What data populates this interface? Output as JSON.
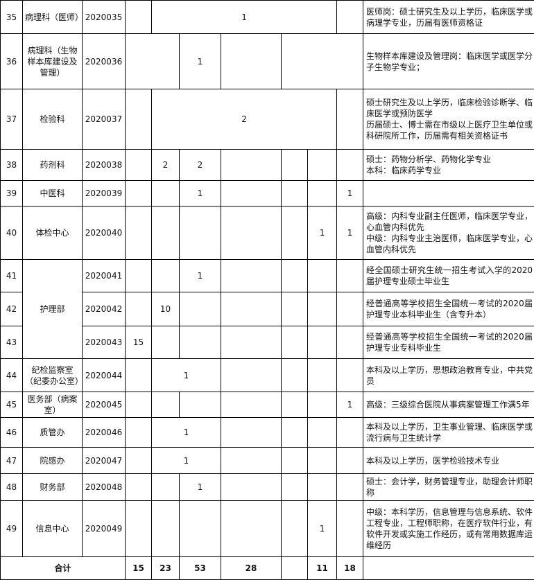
{
  "table": {
    "rows": [
      {
        "no": "35",
        "dept": "病理科（医师）",
        "code": "2020035",
        "counts": [
          1
        ],
        "desc": [
          "医师岗：硕士研究生及以上学历，临床医学或病理学专业，历届有医师资格证"
        ]
      },
      {
        "no": "36",
        "dept": "病理科（生物样本库建设及管理）",
        "code": "2020036",
        "counts": [
          1
        ],
        "desc": [
          "生物样本库建设及管理岗：临床医学或医学分子生物学专业；"
        ]
      },
      {
        "no": "37",
        "dept": "检验科",
        "code": "2020037",
        "counts": [
          2
        ],
        "desc": [
          "硕士研究生及以上学历，临床检验诊断学、临床医学或预防医学",
          "历届硕士、博士需在市级以上医疗卫生单位或科研院所工作，历届需有相关资格证书"
        ]
      },
      {
        "no": "38",
        "dept": "药剂科",
        "code": "2020038",
        "counts": [
          2,
          2
        ],
        "desc": [
          "硕士：药物分析学、药物化学专业",
          "本科：临床药学专业"
        ]
      },
      {
        "no": "39",
        "dept": "中医科",
        "code": "2020039",
        "counts": [
          1,
          1
        ]
      },
      {
        "no": "40",
        "dept": "体检中心",
        "code": "2020040",
        "counts": [
          1,
          1
        ],
        "desc": [
          "高级：内科专业副主任医师，临床医学专业，心血管内科优先",
          "中级：内科专业主治医师，临床医学专业，心血管内科优先"
        ]
      },
      {
        "no": "41",
        "dept": "护理部",
        "code": "2020041",
        "counts": [
          1
        ],
        "desc": [
          "经全国硕士研究生统一招生考试入学的2020届护理专业硕士毕业生"
        ]
      },
      {
        "no": "42",
        "code": "2020042",
        "counts": [
          10
        ],
        "desc": [
          "经普通高等学校招生全国统一考试的2020届护理专业本科毕业生（含专升本）"
        ]
      },
      {
        "no": "43",
        "code": "2020043",
        "counts": [
          15
        ],
        "desc": [
          "经普通高等学校招生全国统一考试的2020届护理专业专科毕业生"
        ]
      },
      {
        "no": "44",
        "dept": "纪检监察室（纪委办公室）",
        "code": "2020044",
        "counts": [
          1
        ],
        "desc": [
          "本科及以上学历，思想政治教育专业，中共党员"
        ]
      },
      {
        "no": "45",
        "dept": "医务部（病案室）",
        "code": "2020045",
        "counts": [
          1
        ],
        "desc": [
          "高级：三级综合医院从事病案管理工作满5年"
        ]
      },
      {
        "no": "46",
        "dept": "质管办",
        "code": "2020046",
        "counts": [
          1
        ],
        "desc": [
          "本科及以上学历，卫生事业管理、临床医学或流行病与卫生统计学"
        ]
      },
      {
        "no": "47",
        "dept": "院感办",
        "code": "2020047",
        "counts": [
          1
        ],
        "desc": [
          "本科及以上学历，医学检验技术专业"
        ]
      },
      {
        "no": "48",
        "dept": "财务部",
        "code": "2020048",
        "counts": [
          1
        ],
        "desc": [
          "硕士：会计学，财务管理专业，助理会计师职称"
        ]
      },
      {
        "no": "49",
        "dept": "信息中心",
        "code": "2020049",
        "counts": [
          1
        ],
        "desc": [
          "中级：本科学历，信息管理与信息系统、软件工程专业，工程师职称，在医疗软件行业，有软件开发或实施工作经历，或有常用数据库运维经历"
        ]
      }
    ],
    "total": {
      "label": "合计",
      "counts": [
        15,
        23,
        53,
        28,
        11,
        18
      ]
    }
  }
}
